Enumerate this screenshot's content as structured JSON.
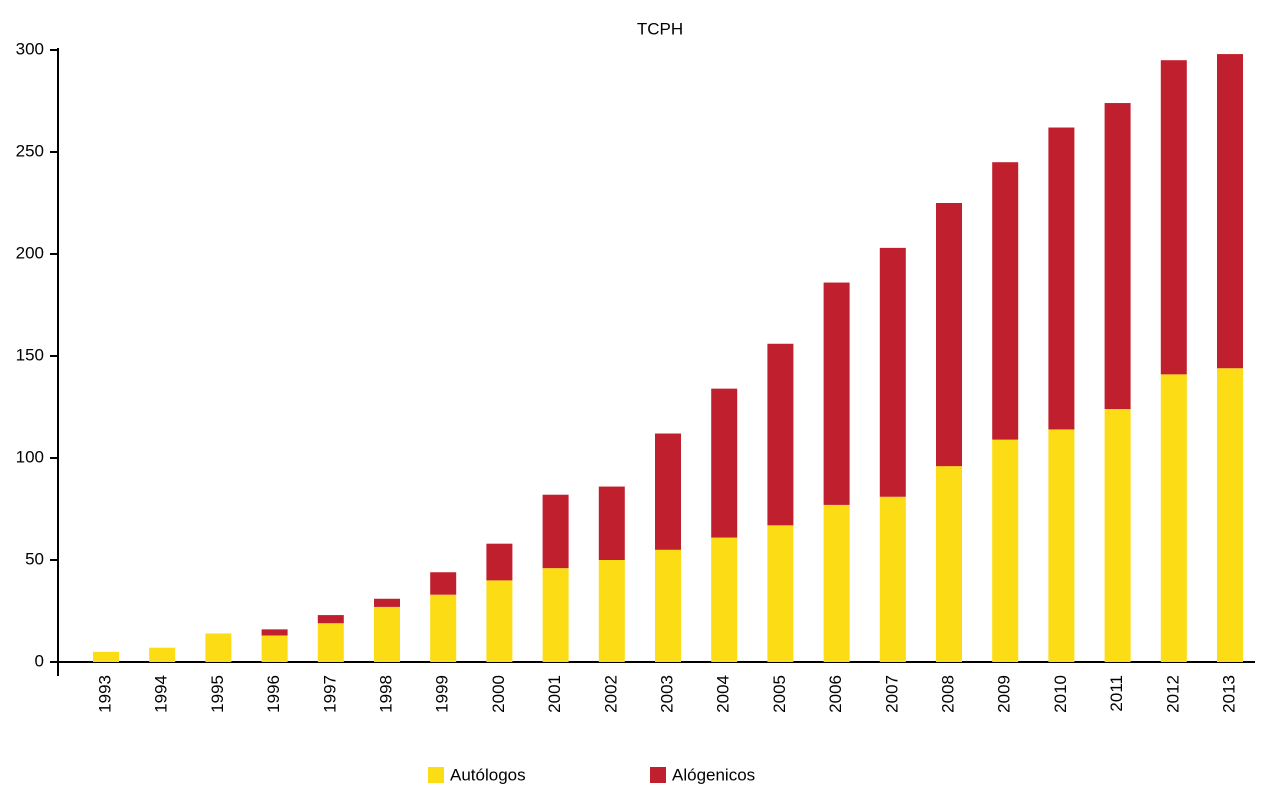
{
  "chart_data": {
    "type": "stacked_bar",
    "title": "TCPH",
    "categories": [
      "1993",
      "1994",
      "1995",
      "1996",
      "1997",
      "1998",
      "1999",
      "2000",
      "2001",
      "2002",
      "2003",
      "2004",
      "2005",
      "2006",
      "2007",
      "2008",
      "2009",
      "2010",
      "2011",
      "2012",
      "2013"
    ],
    "series": [
      {
        "name": "Autólogos",
        "color": "#fcdc14",
        "values": [
          5,
          7,
          14,
          13,
          19,
          27,
          33,
          40,
          46,
          50,
          55,
          61,
          67,
          77,
          81,
          96,
          109,
          114,
          124,
          141,
          144
        ]
      },
      {
        "name": "Alógenicos",
        "color": "#c0202e",
        "values": [
          0,
          0,
          0,
          3,
          4,
          4,
          11,
          18,
          36,
          36,
          57,
          73,
          89,
          109,
          122,
          129,
          136,
          148,
          150,
          154,
          154
        ]
      }
    ],
    "ylim": [
      0,
      300
    ],
    "yticks": [
      0,
      50,
      100,
      150,
      200,
      250,
      300
    ],
    "legend": "bottom"
  }
}
